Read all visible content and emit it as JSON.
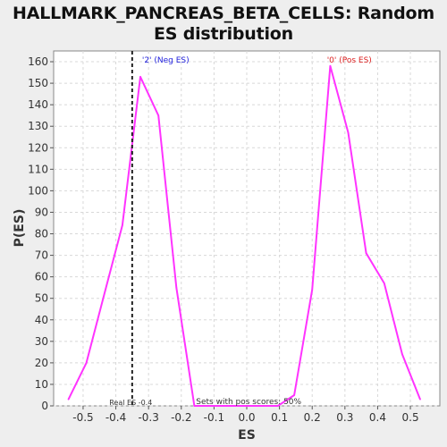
{
  "chart_data": {
    "type": "line",
    "title_line1": "HALLMARK_PANCREAS_BETA_CELLS: Random",
    "title_line2": "ES distribution",
    "xlabel": "ES",
    "ylabel": "P(ES)",
    "xlim": [
      -0.59,
      0.59
    ],
    "ylim": [
      0,
      165
    ],
    "xticks": [
      -0.5,
      -0.4,
      -0.3,
      -0.2,
      -0.1,
      0.0,
      0.1,
      0.2,
      0.3,
      0.4,
      0.5
    ],
    "xtick_labels": [
      "-0.5",
      "-0.4",
      "-0.3",
      "-0.2",
      "-0.1",
      "0.0",
      "0.1",
      "0.2",
      "0.3",
      "0.4",
      "0.5"
    ],
    "yticks": [
      0,
      10,
      20,
      30,
      40,
      50,
      60,
      70,
      80,
      90,
      100,
      110,
      120,
      130,
      140,
      150,
      160
    ],
    "grid": true,
    "series": [
      {
        "color": "#ff33ff",
        "x": [
          -0.545,
          -0.49,
          -0.435,
          -0.38,
          -0.325,
          -0.27,
          -0.215,
          -0.16,
          -0.105,
          -0.05,
          0.0,
          0.05,
          0.095,
          0.145,
          0.2,
          0.255,
          0.31,
          0.365,
          0.42,
          0.475,
          0.53
        ],
        "y": [
          3,
          20,
          52,
          84,
          153,
          135,
          55,
          0,
          0,
          0,
          0,
          0,
          0,
          5,
          54,
          158,
          127,
          71,
          57,
          24,
          3
        ]
      }
    ],
    "real_es": -0.35,
    "annotations": {
      "neg_label": "'2' (Neg ES)",
      "pos_label": "'0' (Pos ES)",
      "real_es_label": "Real ES -0.4",
      "sets_label": "Sets with pos scores: 50%"
    },
    "colors": {
      "neg_label": "#2222dd",
      "pos_label": "#dd2222",
      "line": "#ff33ff",
      "real_es_line": "#222222"
    }
  }
}
